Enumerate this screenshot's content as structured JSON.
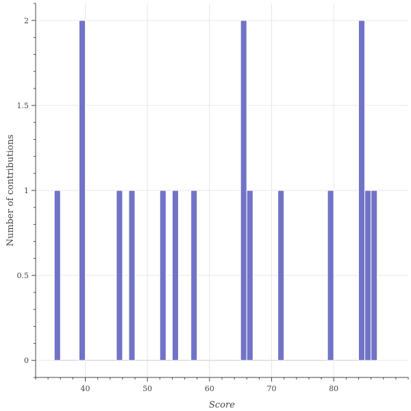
{
  "chart_data": {
    "type": "bar",
    "title": "",
    "xlabel": "Score",
    "ylabel": "Number of contributions",
    "bin_width": 1,
    "x_lim": [
      32,
      92
    ],
    "y_lim": [
      -0.1,
      2.1
    ],
    "x_ticks": [
      40,
      50,
      60,
      70,
      80
    ],
    "y_ticks": [
      0,
      0.5,
      1,
      1.5,
      2
    ],
    "x_tick_labels": [
      "40",
      "50",
      "60",
      "70",
      "80"
    ],
    "y_tick_labels": [
      "0",
      "0.5",
      "1",
      "1.5",
      "2"
    ],
    "grid": true,
    "bars": [
      {
        "x": 35,
        "value": 1
      },
      {
        "x": 39,
        "value": 2
      },
      {
        "x": 45,
        "value": 1
      },
      {
        "x": 47,
        "value": 1
      },
      {
        "x": 52,
        "value": 1
      },
      {
        "x": 54,
        "value": 1
      },
      {
        "x": 57,
        "value": 1
      },
      {
        "x": 65,
        "value": 2
      },
      {
        "x": 66,
        "value": 1
      },
      {
        "x": 71,
        "value": 1
      },
      {
        "x": 79,
        "value": 1
      },
      {
        "x": 84,
        "value": 2
      },
      {
        "x": 85,
        "value": 1
      },
      {
        "x": 86,
        "value": 1
      }
    ],
    "colors": {
      "bar_fill": "#7174c6",
      "bar_edge": "#ffffff",
      "baseline": "#e2d5f0",
      "grid": "#e6e6e6",
      "axis": "#444444"
    }
  }
}
